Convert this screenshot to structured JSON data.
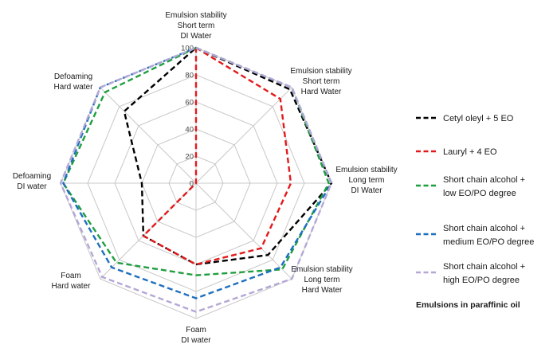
{
  "chart_data": {
    "type": "radar",
    "axes": [
      [
        "Emulsion stability",
        "Short term",
        "DI Water"
      ],
      [
        "Emulsion stability",
        "Short term",
        "Hard Water"
      ],
      [
        "Emulsion stability",
        "Long term",
        "DI Water"
      ],
      [
        "Emulsion stability",
        "Long term",
        "Hard Water"
      ],
      [
        "Foam",
        "DI water"
      ],
      [
        "Foam",
        "Hard water"
      ],
      [
        "Defoaming",
        "DI water"
      ],
      [
        "Defoaming",
        "Hard water"
      ]
    ],
    "ticks": [
      0,
      20,
      40,
      60,
      80,
      100
    ],
    "range": [
      0,
      100
    ],
    "series": [
      {
        "name": "Cetyl oleyl + 5 EO",
        "color": "#000000",
        "values": [
          100,
          98,
          100,
          75,
          60,
          55,
          40,
          75
        ]
      },
      {
        "name": "Lauryl + 4 EO",
        "color": "#e31a1c",
        "values": [
          100,
          88,
          70,
          68,
          60,
          55,
          0,
          0
        ]
      },
      {
        "name": "Short chain alcohol + low EO/PO degree",
        "color": "#1f9e3e",
        "values": [
          100,
          100,
          98,
          90,
          68,
          83,
          98,
          95
        ]
      },
      {
        "name": "Short chain alcohol + medium EO/PO degree",
        "color": "#1f6fbf",
        "values": [
          100,
          100,
          100,
          88,
          85,
          88,
          98,
          100
        ]
      },
      {
        "name": "Short chain alcohol + high EO/PO degree",
        "color": "#b4a7d6",
        "values": [
          100,
          100,
          100,
          100,
          95,
          98,
          100,
          100
        ]
      }
    ],
    "legend_position": "right",
    "note": "Emulsions in paraffinic oil",
    "grid": true
  }
}
